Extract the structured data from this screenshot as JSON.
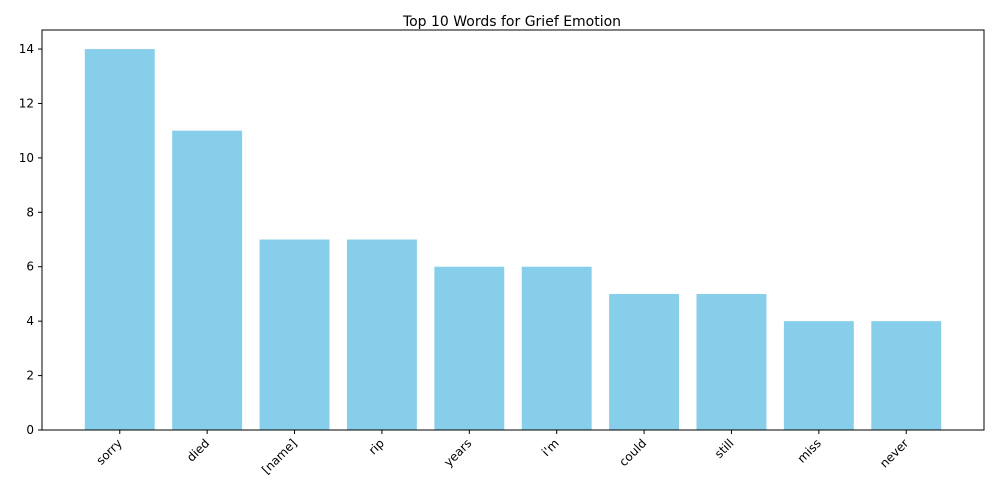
{
  "chart_data": {
    "type": "bar",
    "title": "Top 10 Words for Grief Emotion",
    "xlabel": "",
    "ylabel": "",
    "categories": [
      "sorry",
      "died",
      "[name]",
      "rip",
      "years",
      "i'm",
      "could",
      "still",
      "miss",
      "never"
    ],
    "values": [
      14,
      11,
      7,
      7,
      6,
      6,
      5,
      5,
      4,
      4
    ],
    "ylim": [
      0,
      14.7
    ],
    "yticks": [
      0,
      2,
      4,
      6,
      8,
      10,
      12,
      14
    ],
    "grid": false,
    "legend": "none",
    "bar_color": "#87CEEB",
    "x_tick_rotation": 45
  }
}
